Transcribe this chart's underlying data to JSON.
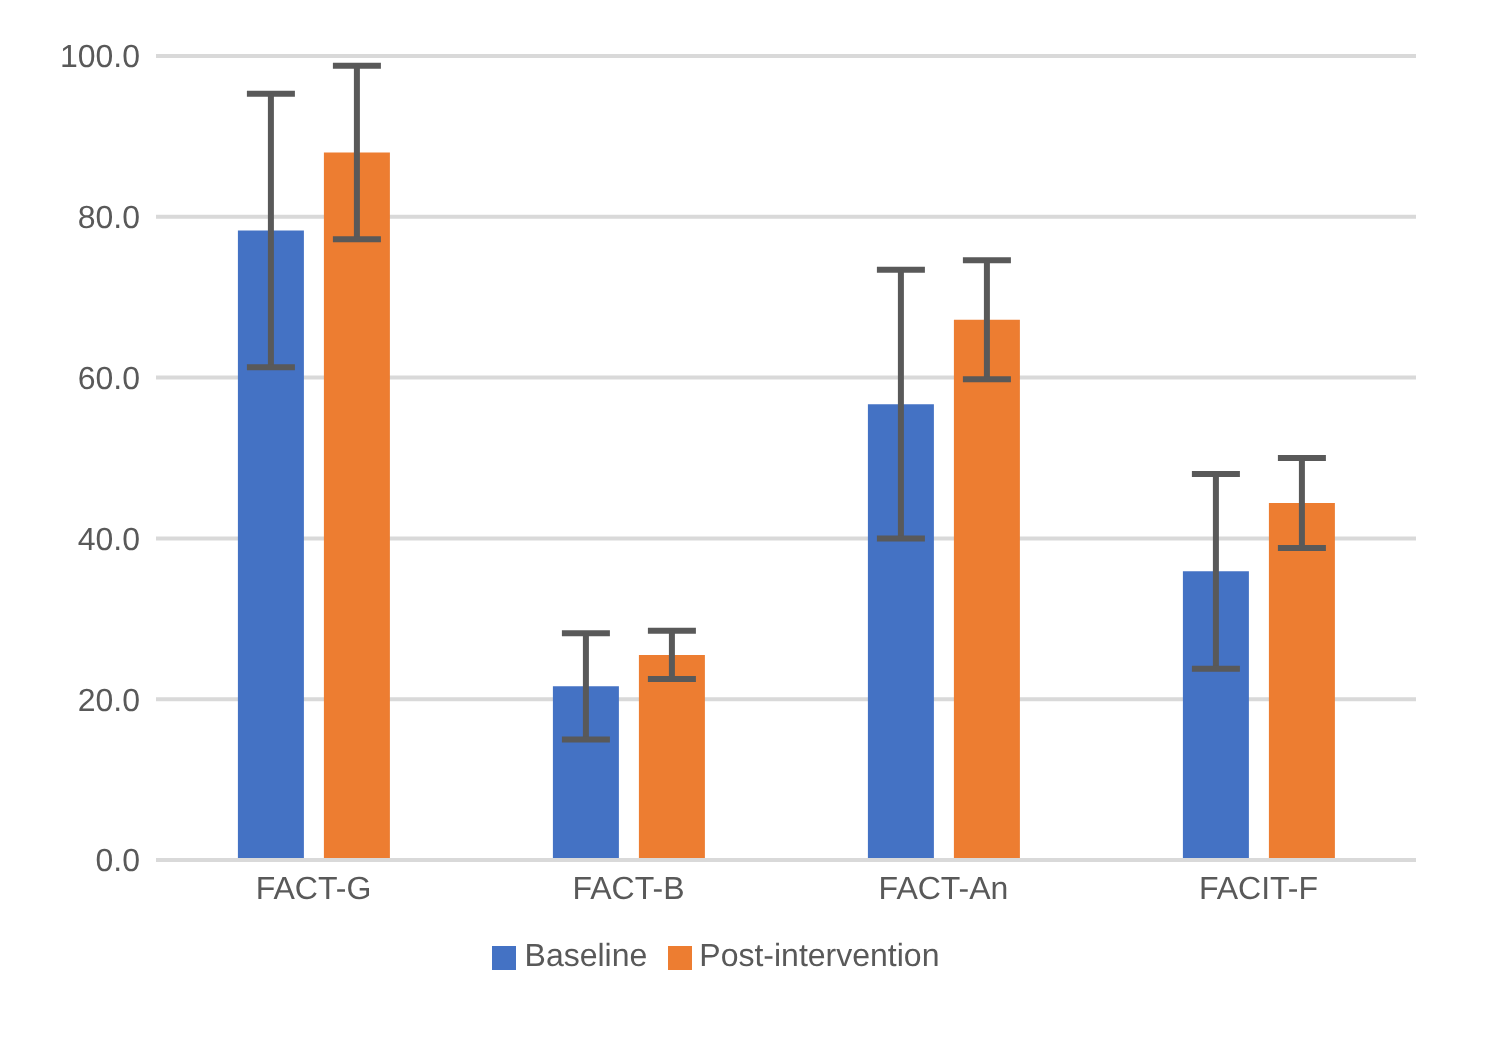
{
  "chart_data": {
    "type": "bar",
    "categories": [
      "FACT-G",
      "FACT-B",
      "FACT-An",
      "FACIT-F"
    ],
    "series": [
      {
        "name": "Baseline",
        "color": "#4472c4",
        "values": [
          78.3,
          21.6,
          56.7,
          35.9
        ],
        "errors": [
          17.0,
          6.6,
          16.7,
          12.1
        ]
      },
      {
        "name": "Post-intervention",
        "color": "#ed7d31",
        "values": [
          88.0,
          25.5,
          67.2,
          44.4
        ],
        "errors": [
          10.8,
          3.0,
          7.4,
          5.6
        ]
      }
    ],
    "ylim": [
      0,
      100
    ],
    "yticks": [
      {
        "value": 0,
        "label": "0.0"
      },
      {
        "value": 20,
        "label": "20.0"
      },
      {
        "value": 40,
        "label": "40.0"
      },
      {
        "value": 60,
        "label": "60.0"
      },
      {
        "value": 80,
        "label": "80.0"
      },
      {
        "value": 100,
        "label": "100.0"
      }
    ],
    "grid": "y",
    "legend": "bottom"
  }
}
